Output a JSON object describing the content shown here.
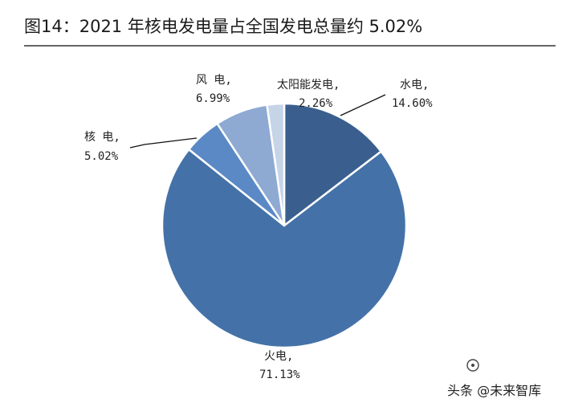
{
  "figure_title": "图14：2021 年核电发电量占全国发电总量约 5.02%",
  "watermark": "头条 @未来智库",
  "chart_data": {
    "type": "pie",
    "title": "图14：2021 年核电发电量占全国发电总量约 5.02%",
    "start_angle_deg": 0,
    "direction": "clockwise",
    "slices": [
      {
        "name": "水电,",
        "value": 14.6,
        "label": "14.60%",
        "color": "#3a5f8f"
      },
      {
        "name": "火电,",
        "value": 71.13,
        "label": "71.13%",
        "color": "#4472a8"
      },
      {
        "name": "核 电,",
        "value": 5.02,
        "label": "5.02%",
        "color": "#5b89c6"
      },
      {
        "name": "风 电,",
        "value": 6.99,
        "label": "6.99%",
        "color": "#8eaad3"
      },
      {
        "name": "太阳能发电,",
        "value": 2.26,
        "label": "2.26%",
        "color": "#c6d4e8"
      }
    ]
  }
}
